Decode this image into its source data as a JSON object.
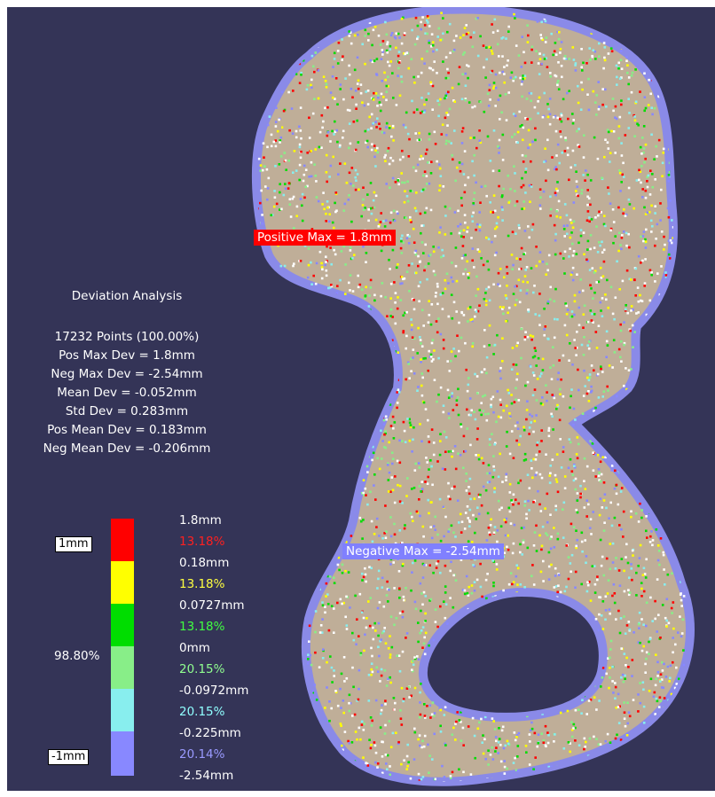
{
  "analysis": {
    "title": "Deviation Analysis",
    "lines": [
      "17232 Points (100.00%)",
      "Pos Max Dev = 1.8mm",
      "Neg Max Dev = -2.54mm",
      "Mean Dev = -0.052mm",
      "Std Dev = 0.283mm",
      "Pos Mean Dev = 0.183mm",
      "Neg Mean Dev = -0.206mm"
    ]
  },
  "scale": {
    "top_label": "1mm",
    "bottom_label": "-1mm",
    "in_range_percent": "98.80%",
    "bands": [
      {
        "color": "#ff0000",
        "percent": "13.18%",
        "percent_color": "#ff2020"
      },
      {
        "color": "#ffff00",
        "percent": "13.18%",
        "percent_color": "#ffff40"
      },
      {
        "color": "#00dd00",
        "percent": "13.18%",
        "percent_color": "#40ff40"
      },
      {
        "color": "#88ee88",
        "percent": "20.15%",
        "percent_color": "#90ff90"
      },
      {
        "color": "#88eeee",
        "percent": "20.15%",
        "percent_color": "#90ffff"
      },
      {
        "color": "#8888ff",
        "percent": "20.14%",
        "percent_color": "#9a9aff"
      }
    ],
    "values": [
      "1.8mm",
      "0.18mm",
      "0.0727mm",
      "0mm",
      "-0.0972mm",
      "-0.225mm",
      "-2.54mm"
    ]
  },
  "annotations": {
    "positive_max": {
      "text": "Positive Max = 1.8mm",
      "color": "#ff0000"
    },
    "negative_max": {
      "text": "Negative Max = -2.54mm",
      "color": "#8080ff"
    }
  }
}
